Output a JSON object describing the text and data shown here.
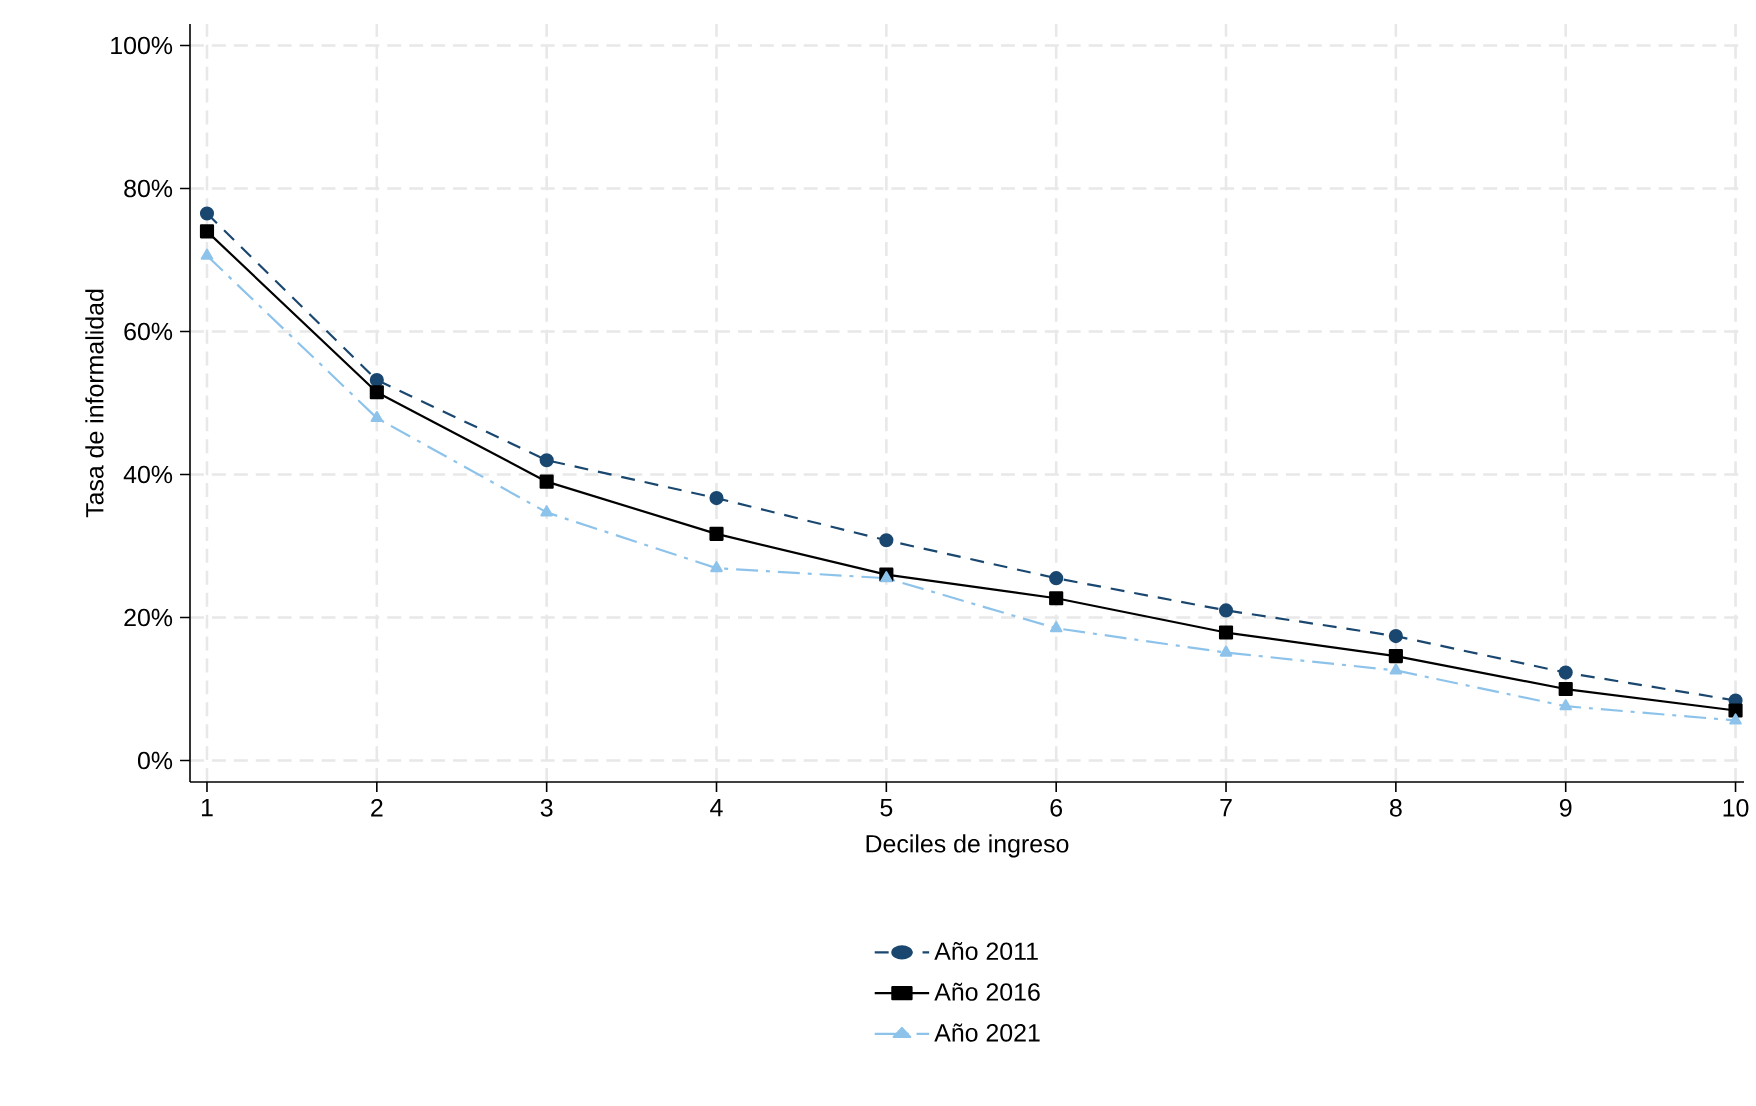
{
  "chart_data": {
    "type": "line",
    "xlabel": "Deciles de ingreso",
    "ylabel": "Tasa de informalidad",
    "x": [
      1,
      2,
      3,
      4,
      5,
      6,
      7,
      8,
      9,
      10
    ],
    "xlim": [
      0.9,
      10.05
    ],
    "xticks": [
      1,
      2,
      3,
      4,
      5,
      6,
      7,
      8,
      9,
      10
    ],
    "ylim": [
      -3,
      103
    ],
    "yticks": [
      {
        "value": 0,
        "label": "0%"
      },
      {
        "value": 20,
        "label": "20%"
      },
      {
        "value": 40,
        "label": "40%"
      },
      {
        "value": 60,
        "label": "60%"
      },
      {
        "value": 80,
        "label": "80%"
      },
      {
        "value": 100,
        "label": "100%"
      }
    ],
    "grid": true,
    "legend": "bottom",
    "series": [
      {
        "name": "Año 2011",
        "color": "#1a476f",
        "marker": "circle",
        "line_style": "dashed",
        "values": [
          76.5,
          53.2,
          42,
          36.7,
          30.8,
          25.5,
          21,
          17.4,
          12.3,
          8.4
        ]
      },
      {
        "name": "Año 2016",
        "color": "#000000",
        "marker": "square",
        "line_style": "solid",
        "values": [
          74,
          51.5,
          39,
          31.7,
          26,
          22.7,
          17.9,
          14.6,
          10,
          7
        ]
      },
      {
        "name": "Año 2021",
        "color": "#8dc3ea",
        "marker": "triangle",
        "line_style": "dashdot",
        "values": [
          70.6,
          47.9,
          34.7,
          26.9,
          25.5,
          18.5,
          15.1,
          12.6,
          7.6,
          5.6
        ]
      }
    ]
  }
}
